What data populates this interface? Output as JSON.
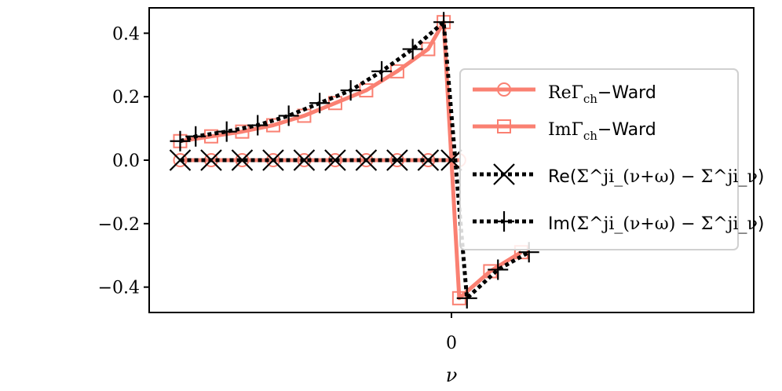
{
  "chart_data": {
    "type": "line",
    "title": "",
    "xlabel": "ν",
    "ylabel": "",
    "xlim": [
      -19.5,
      19.5
    ],
    "ylim": [
      -0.48,
      0.48
    ],
    "xticks": [
      {
        "value": 0,
        "label": "0"
      }
    ],
    "yticks": [
      {
        "value": 0.4,
        "label": "0.4"
      },
      {
        "value": 0.2,
        "label": "0.2"
      },
      {
        "value": 0.0,
        "label": "0.0"
      },
      {
        "value": -0.2,
        "label": "−0.2"
      },
      {
        "value": -0.4,
        "label": "−0.4"
      }
    ],
    "grid": false,
    "legend_position": "center-right",
    "series": [
      {
        "key": "re_ward",
        "legend": {
          "prefix": "Re",
          "symbol": "Γ",
          "sub": "ch",
          "suffix": "−Ward"
        },
        "color": "#fa8072",
        "linestyle": "solid",
        "marker": "circle",
        "x": [
          -17.5,
          -15.5,
          -13.5,
          -11.5,
          -9.5,
          -7.5,
          -5.5,
          -3.5,
          -1.5,
          0.5
        ],
        "y": [
          0,
          0,
          0,
          0,
          0,
          0,
          0,
          0,
          0,
          0
        ]
      },
      {
        "key": "im_ward",
        "legend": {
          "prefix": "Im",
          "symbol": "Γ",
          "sub": "ch",
          "suffix": "−Ward"
        },
        "color": "#fa8072",
        "linestyle": "solid",
        "marker": "square",
        "x": [
          -17.5,
          -15.5,
          -13.5,
          -11.5,
          -9.5,
          -7.5,
          -5.5,
          -3.5,
          -1.5,
          -0.5,
          0.5,
          2.5,
          4.5
        ],
        "y": [
          0.06,
          0.075,
          0.09,
          0.11,
          0.14,
          0.18,
          0.22,
          0.28,
          0.35,
          0.435,
          -0.435,
          -0.35,
          -0.29
        ]
      },
      {
        "key": "re_sigma",
        "legend": {
          "prefix": "Re(",
          "formula": "Σ^ji_(ν+ω) − Σ^ji_ν",
          "suffix": ")"
        },
        "color": "#000000",
        "linestyle": "dotted",
        "marker": "x",
        "x": [
          -17.5,
          -15.5,
          -13.5,
          -11.5,
          -9.5,
          -7.5,
          -5.5,
          -3.5,
          -1.5,
          0.0
        ],
        "y": [
          0,
          0,
          0,
          0,
          0,
          0,
          0,
          0,
          0,
          0
        ]
      },
      {
        "key": "im_sigma",
        "legend": {
          "prefix": "Im(",
          "formula": "Σ^ji_(ν+ω) − Σ^ji_ν",
          "suffix": ")"
        },
        "color": "#000000",
        "linestyle": "dotted",
        "marker": "plus",
        "x": [
          -17.5,
          -16.5,
          -14.5,
          -12.5,
          -10.5,
          -8.5,
          -6.5,
          -4.5,
          -2.5,
          -0.5,
          1.0,
          3.0,
          5.0
        ],
        "y": [
          0.06,
          0.075,
          0.09,
          0.11,
          0.14,
          0.18,
          0.22,
          0.28,
          0.35,
          0.435,
          -0.435,
          -0.345,
          -0.29
        ]
      }
    ]
  }
}
